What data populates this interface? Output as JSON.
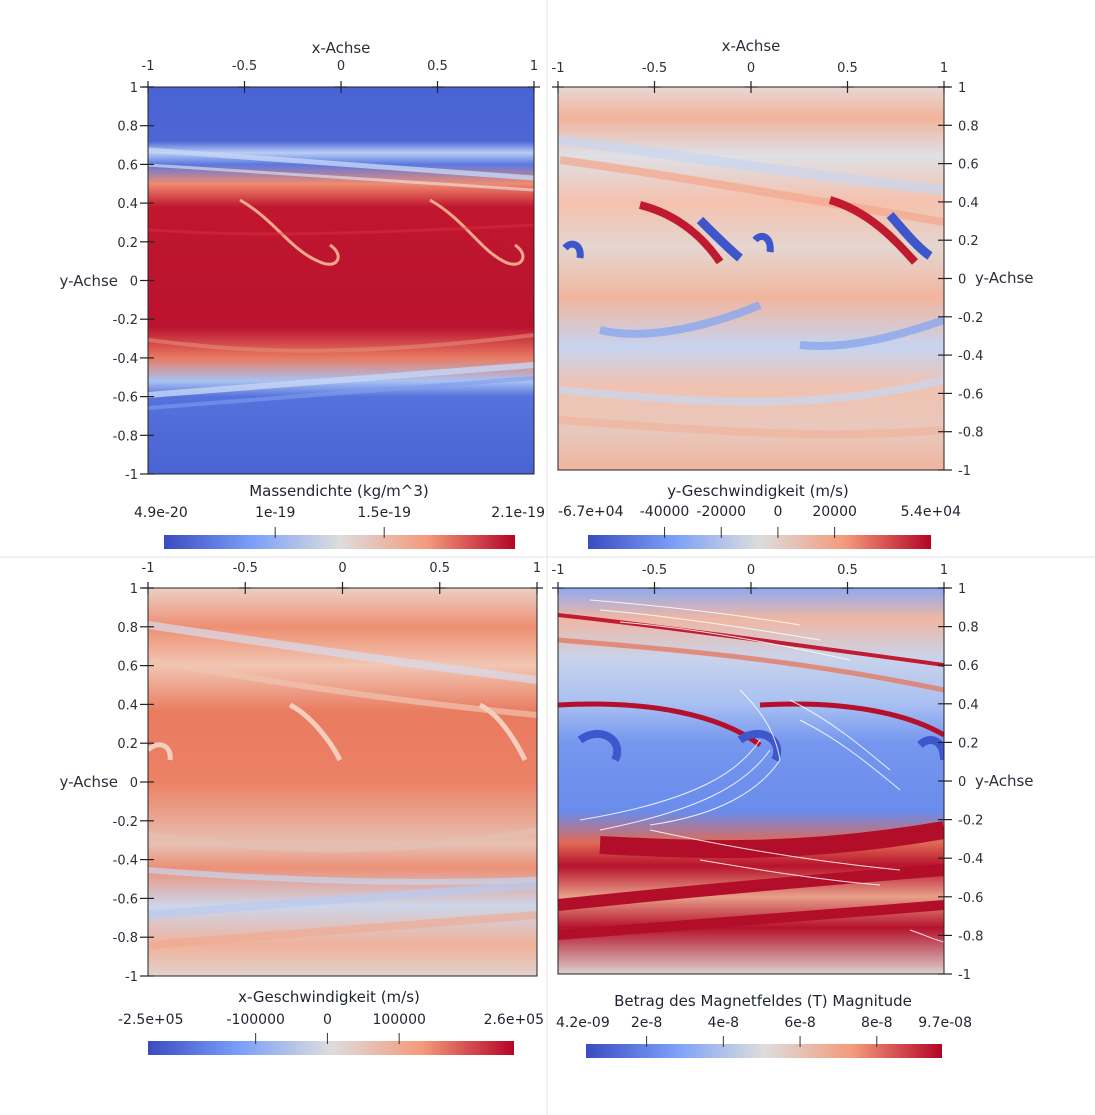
{
  "colors": {
    "cool": "#3b4cc0",
    "neutral": "#dddddd",
    "warm": "#b40426",
    "divider": "#e6e6e6",
    "axis": "#222222",
    "streamline": "#ffffff"
  },
  "chart_data": [
    {
      "type": "heatmap",
      "panel": "top-left",
      "title": "Massendichte (kg/m^3)",
      "xlabel": "x-Achse",
      "ylabel": "y-Achse",
      "xlim": [
        -1,
        1
      ],
      "ylim": [
        -1,
        1
      ],
      "x_ticks": [
        "-1",
        "-0.5",
        "0",
        "0.5",
        "1"
      ],
      "y_ticks": [
        "1",
        "0.8",
        "0.6",
        "0.4",
        "0.2",
        "0",
        "-0.2",
        "-0.4",
        "-0.6",
        "-0.8",
        "-1"
      ],
      "colorbar": {
        "min": 4.9e-20,
        "max": 2.1e-19,
        "ticks": [
          {
            "label": "4.9e-20",
            "value": 4.9e-20
          },
          {
            "label": "1e-19",
            "value": 1e-19
          },
          {
            "label": "1.5e-19",
            "value": 1.5e-19
          },
          {
            "label": "2.1e-19",
            "value": 2.1e-19
          }
        ]
      }
    },
    {
      "type": "heatmap",
      "panel": "top-right",
      "title": "y-Geschwindigkeit (m/s)",
      "xlabel": "x-Achse",
      "ylabel": "y-Achse",
      "xlim": [
        -1,
        1
      ],
      "ylim": [
        -1,
        1
      ],
      "x_ticks": [
        "-1",
        "-0.5",
        "0",
        "0.5",
        "1"
      ],
      "y_ticks": [
        "1",
        "0.8",
        "0.6",
        "0.4",
        "0.2",
        "0",
        "-0.2",
        "-0.4",
        "-0.6",
        "-0.8",
        "-1"
      ],
      "colorbar": {
        "min": -67000,
        "max": 54000,
        "ticks": [
          {
            "label": "-6.7e+04",
            "value": -67000
          },
          {
            "label": "-40000",
            "value": -40000
          },
          {
            "label": "-20000",
            "value": -20000
          },
          {
            "label": "0",
            "value": 0
          },
          {
            "label": "20000",
            "value": 20000
          },
          {
            "label": "5.4e+04",
            "value": 54000
          }
        ]
      }
    },
    {
      "type": "heatmap",
      "panel": "bottom-left",
      "title": "x-Geschwindigkeit (m/s)",
      "xlabel": "",
      "ylabel": "y-Achse",
      "xlim": [
        -1,
        1
      ],
      "ylim": [
        -1,
        1
      ],
      "x_ticks": [
        "-1",
        "-0.5",
        "0",
        "0.5",
        "1"
      ],
      "y_ticks": [
        "1",
        "0.8",
        "0.6",
        "0.4",
        "0.2",
        "0",
        "-0.2",
        "-0.4",
        "-0.6",
        "-0.8",
        "-1"
      ],
      "colorbar": {
        "min": -250000,
        "max": 260000,
        "ticks": [
          {
            "label": "-2.5e+05",
            "value": -250000
          },
          {
            "label": "-100000",
            "value": -100000
          },
          {
            "label": "0",
            "value": 0
          },
          {
            "label": "100000",
            "value": 100000
          },
          {
            "label": "2.6e+05",
            "value": 260000
          }
        ]
      }
    },
    {
      "type": "heatmap",
      "panel": "bottom-right",
      "title": "Betrag des Magnetfeldes (T) Magnitude",
      "xlabel": "",
      "ylabel": "y-Achse",
      "xlim": [
        -1,
        1
      ],
      "ylim": [
        -1,
        1
      ],
      "streamlines": true,
      "x_ticks": [
        "-1",
        "-0.5",
        "0",
        "0.5",
        "1"
      ],
      "y_ticks": [
        "1",
        "0.8",
        "0.6",
        "0.4",
        "0.2",
        "0",
        "-0.2",
        "-0.4",
        "-0.6",
        "-0.8",
        "-1"
      ],
      "colorbar": {
        "min": 4.2e-09,
        "max": 9.7e-08,
        "ticks": [
          {
            "label": "4.2e-09",
            "value": 4.2e-09
          },
          {
            "label": "2e-8",
            "value": 2e-08
          },
          {
            "label": "4e-8",
            "value": 4e-08
          },
          {
            "label": "6e-8",
            "value": 6e-08
          },
          {
            "label": "8e-8",
            "value": 8e-08
          },
          {
            "label": "9.7e-08",
            "value": 9.7e-08
          }
        ]
      }
    }
  ]
}
